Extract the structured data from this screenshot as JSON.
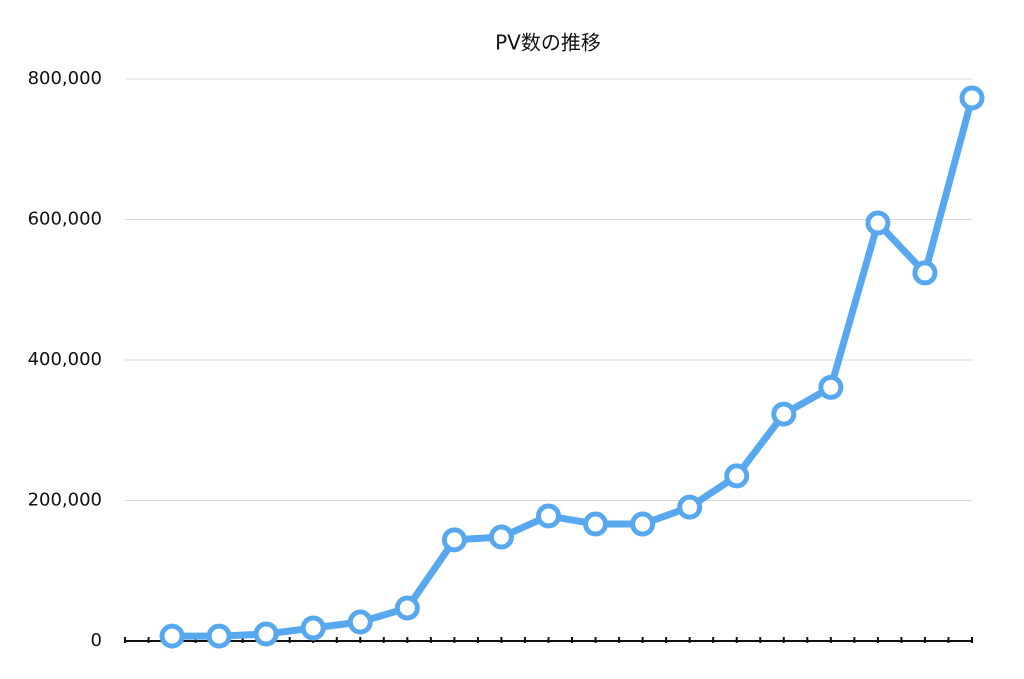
{
  "chart_data": {
    "type": "line",
    "title": "PV数の推移",
    "categories": [
      null,
      null,
      null,
      null,
      null,
      null,
      null,
      null,
      null,
      null,
      null,
      null,
      null,
      null,
      null,
      null,
      null,
      null
    ],
    "series": [
      {
        "color": "#58a8f0",
        "values": [
          7000,
          7000,
          10000,
          18500,
          27000,
          47000,
          144000,
          148000,
          178000,
          166500,
          166500,
          190500,
          235000,
          323000,
          361000,
          595000,
          524000,
          773000
        ]
      }
    ],
    "ylim": [
      0,
      800000
    ],
    "yticks": [
      0,
      {
        "value": 200000,
        "label": "200,000"
      },
      {
        "value": 400000,
        "label": "400,000"
      },
      {
        "value": 600000,
        "label": "600,000"
      },
      {
        "value": 800000,
        "label": "800,000"
      }
    ],
    "grid": true
  }
}
